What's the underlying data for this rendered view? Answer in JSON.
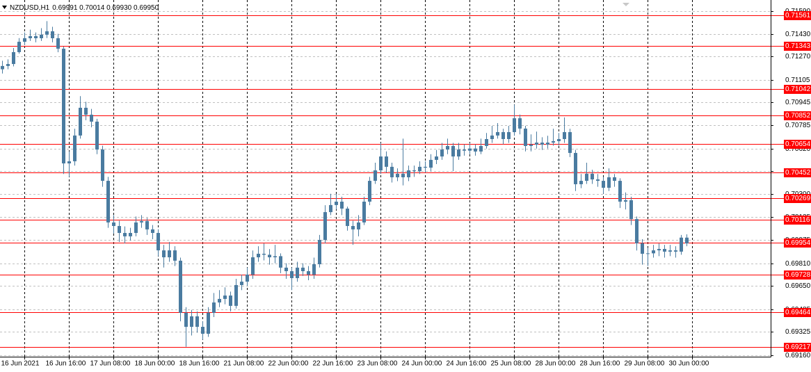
{
  "chart_data": {
    "type": "candlestick",
    "title": "NZDUSD,H1",
    "quote": "0.69991 0.70014 0.69930 0.69950",
    "color": "#4a7ba0",
    "grid": true,
    "ylim": [
      0.6915,
      0.71669
    ],
    "yticks": [
      {
        "value": 0.7159,
        "label": "0.71590"
      },
      {
        "value": 0.7143,
        "label": "0.71430"
      },
      {
        "value": 0.7127,
        "label": "0.71270"
      },
      0.71105,
      0.70945,
      0.70785,
      {
        "value": 0.7062,
        "label": "0.70620"
      },
      {
        "value": 0.7046,
        "label": "0.70460"
      },
      {
        "value": 0.703,
        "label": "0.70300"
      },
      0.70135,
      0.69975,
      {
        "value": 0.6981,
        "label": "0.69810"
      },
      {
        "value": 0.6965,
        "label": "0.69650"
      },
      0.69485,
      0.69325,
      {
        "value": 0.6916,
        "label": "0.69160"
      }
    ],
    "x_labels": [
      "16 Jun 2021",
      "16 Jun 16:00",
      "17 Jun 08:00",
      "18 Jun 00:00",
      "18 Jun 16:00",
      "21 Jun 08:00",
      "22 Jun 00:00",
      "22 Jun 16:00",
      "23 Jun 08:00",
      "24 Jun 00:00",
      "24 Jun 16:00",
      "25 Jun 08:00",
      "28 Jun 00:00",
      "28 Jun 16:00",
      "29 Jun 08:00",
      "30 Jun 00:00"
    ],
    "levels": [
      0.71561,
      0.71343,
      0.71042,
      0.70852,
      0.70654,
      0.70452,
      0.70269,
      0.70116,
      0.69954,
      0.69728,
      0.69464,
      0.69217
    ],
    "level_color": "#ff0000",
    "open": [
      0.7118,
      0.71203,
      0.71217,
      0.71301,
      0.71374,
      0.71399,
      0.71414,
      0.71399,
      0.71424,
      0.71448,
      0.71399,
      0.71325,
      0.70515,
      0.7053,
      0.70712,
      0.70908,
      0.70859,
      0.7081,
      0.70613,
      0.70392,
      0.70098,
      0.70073,
      0.70024,
      0.7,
      0.70024,
      0.70098,
      0.70108,
      0.70049,
      0.70024,
      0.69901,
      0.69852,
      0.69901,
      0.69828,
      0.6946,
      0.69361,
      0.69435,
      0.69361,
      0.69312,
      0.6946,
      0.69533,
      0.69558,
      0.69582,
      0.69509,
      0.69656,
      0.6968,
      0.6973,
      0.69852,
      0.69877,
      0.6987,
      0.69852,
      0.6986,
      0.69779,
      0.69754,
      0.69705,
      0.69779,
      0.69754,
      0.6973,
      0.69803,
      0.69975,
      0.70171,
      0.70221,
      0.70245,
      0.70196,
      0.70073,
      0.70049,
      0.70098,
      0.70245,
      0.70392,
      0.70466,
      0.70564,
      0.70491,
      0.70417,
      0.70442,
      0.70417,
      0.70466,
      0.7046,
      0.70491,
      0.70485,
      0.7054,
      0.70564,
      0.70613,
      0.70638,
      0.70564,
      0.70613,
      0.70605,
      0.7062,
      0.70599,
      0.70638,
      0.70687,
      0.70712,
      0.70736,
      0.70687,
      0.70736,
      0.70834,
      0.70761,
      0.70638,
      0.70648,
      0.70662,
      0.70648,
      0.70662,
      0.70672,
      0.70687,
      0.70736,
      0.70589,
      0.70368,
      0.70392,
      0.70442,
      0.70402,
      0.70392,
      0.70343,
      0.70417,
      0.70392,
      0.70245,
      0.70255,
      0.70122,
      0.69951,
      0.69877,
      0.6988,
      0.69901,
      0.69911,
      0.69892,
      0.69901,
      0.69892,
      0.69991
    ],
    "high": [
      0.7124,
      0.7125,
      0.7133,
      0.714,
      0.7144,
      0.7146,
      0.7144,
      0.7147,
      0.7152,
      0.7148,
      0.7143,
      0.7134,
      0.706,
      0.7076,
      0.7099,
      0.7095,
      0.709,
      0.7083,
      0.7064,
      0.7042,
      0.7015,
      0.7011,
      0.7007,
      0.7006,
      0.7014,
      0.7015,
      0.7013,
      0.7008,
      0.7005,
      0.6994,
      0.6996,
      0.6993,
      0.6985,
      0.695,
      0.6948,
      0.6947,
      0.694,
      0.695,
      0.696,
      0.6962,
      0.6964,
      0.6961,
      0.697,
      0.6973,
      0.6978,
      0.699,
      0.6993,
      0.6995,
      0.6991,
      0.6994,
      0.6988,
      0.6981,
      0.6978,
      0.6982,
      0.6981,
      0.6979,
      0.6985,
      0.7001,
      0.7022,
      0.703,
      0.703,
      0.7028,
      0.7021,
      0.7011,
      0.7015,
      0.7028,
      0.7042,
      0.7052,
      0.7066,
      0.706,
      0.7052,
      0.7048,
      0.7069,
      0.705,
      0.705,
      0.7053,
      0.7053,
      0.7058,
      0.7061,
      0.7066,
      0.7069,
      0.7066,
      0.7066,
      0.7065,
      0.7066,
      0.7065,
      0.7069,
      0.7073,
      0.7078,
      0.708,
      0.7076,
      0.7078,
      0.7093,
      0.7086,
      0.7078,
      0.7072,
      0.7074,
      0.707,
      0.7071,
      0.7076,
      0.7073,
      0.7084,
      0.7076,
      0.7061,
      0.7044,
      0.7052,
      0.7047,
      0.7044,
      0.7042,
      0.7048,
      0.7044,
      0.7041,
      0.7031,
      0.7028,
      0.7014,
      0.6998,
      0.6992,
      0.6994,
      0.6995,
      0.6994,
      0.6994,
      0.6993,
      0.7001,
      0.70014
    ],
    "low": [
      0.7115,
      0.7118,
      0.712,
      0.7129,
      0.7135,
      0.7138,
      0.7137,
      0.7138,
      0.714,
      0.7137,
      0.713,
      0.7044,
      0.7042,
      0.705,
      0.7069,
      0.7082,
      0.7077,
      0.7058,
      0.7035,
      0.7006,
      0.7002,
      0.6996,
      0.6995,
      0.6997,
      0.7,
      0.7006,
      0.7001,
      0.6998,
      0.6986,
      0.6978,
      0.6982,
      0.6979,
      0.694,
      0.6922,
      0.693,
      0.6932,
      0.6927,
      0.6929,
      0.6943,
      0.695,
      0.6952,
      0.6947,
      0.6949,
      0.6962,
      0.6965,
      0.697,
      0.6982,
      0.6983,
      0.698,
      0.6981,
      0.6974,
      0.697,
      0.6962,
      0.6968,
      0.6972,
      0.6969,
      0.697,
      0.6978,
      0.6995,
      0.7015,
      0.7019,
      0.7015,
      0.7004,
      0.6994,
      0.7,
      0.7008,
      0.7022,
      0.7037,
      0.7044,
      0.7045,
      0.7038,
      0.7039,
      0.7036,
      0.7039,
      0.7042,
      0.7044,
      0.7045,
      0.7046,
      0.7051,
      0.7054,
      0.7058,
      0.7046,
      0.7054,
      0.7057,
      0.7058,
      0.7057,
      0.7058,
      0.7062,
      0.7066,
      0.7069,
      0.7065,
      0.7066,
      0.7071,
      0.7072,
      0.706,
      0.706,
      0.7062,
      0.7061,
      0.7062,
      0.7064,
      0.7064,
      0.7066,
      0.7056,
      0.7032,
      0.7034,
      0.7037,
      0.7037,
      0.7035,
      0.703,
      0.7032,
      0.7035,
      0.702,
      0.7019,
      0.7008,
      0.699,
      0.698,
      0.6979,
      0.6985,
      0.6986,
      0.6985,
      0.6986,
      0.6985,
      0.6987,
      0.6993
    ],
    "close": [
      0.71203,
      0.71217,
      0.71301,
      0.71374,
      0.71399,
      0.71414,
      0.71399,
      0.71424,
      0.71448,
      0.71399,
      0.71325,
      0.70515,
      0.7053,
      0.70712,
      0.70908,
      0.70859,
      0.7081,
      0.70613,
      0.70392,
      0.70098,
      0.70073,
      0.70024,
      0.7,
      0.70024,
      0.70098,
      0.70108,
      0.70049,
      0.70024,
      0.69901,
      0.69852,
      0.69901,
      0.69828,
      0.6946,
      0.69361,
      0.69435,
      0.69361,
      0.69312,
      0.6946,
      0.69533,
      0.69558,
      0.69582,
      0.69509,
      0.69656,
      0.6968,
      0.6973,
      0.69852,
      0.69877,
      0.6987,
      0.69852,
      0.6986,
      0.69779,
      0.69754,
      0.69705,
      0.69779,
      0.69754,
      0.6973,
      0.69803,
      0.69975,
      0.70171,
      0.70221,
      0.70245,
      0.70196,
      0.70073,
      0.70049,
      0.70098,
      0.70245,
      0.70392,
      0.70466,
      0.70564,
      0.70491,
      0.70417,
      0.70442,
      0.70417,
      0.70466,
      0.7046,
      0.70491,
      0.70485,
      0.7054,
      0.70564,
      0.70613,
      0.70638,
      0.70564,
      0.70613,
      0.70605,
      0.7062,
      0.70599,
      0.70638,
      0.70687,
      0.70712,
      0.70736,
      0.70687,
      0.70736,
      0.70834,
      0.70761,
      0.70638,
      0.70648,
      0.70662,
      0.70648,
      0.70662,
      0.70672,
      0.70687,
      0.70736,
      0.70589,
      0.70368,
      0.70392,
      0.70442,
      0.70402,
      0.70392,
      0.70343,
      0.70417,
      0.70392,
      0.70245,
      0.70255,
      0.70122,
      0.69951,
      0.69877,
      0.6988,
      0.69901,
      0.69911,
      0.69892,
      0.69901,
      0.69892,
      0.69991,
      0.6995
    ]
  }
}
